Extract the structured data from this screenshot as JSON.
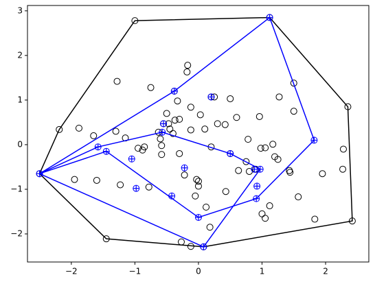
{
  "chart_data": {
    "type": "scatter",
    "xlim": [
      -2.69,
      2.68
    ],
    "ylim": [
      -2.63,
      3.12
    ],
    "xticks": [
      {
        "value": -2,
        "label": "−2"
      },
      {
        "value": -1,
        "label": "−1"
      },
      0,
      1,
      2
    ],
    "yticks": [
      {
        "value": -2,
        "label": "−2"
      },
      {
        "value": -1,
        "label": "−1"
      },
      0,
      1,
      2,
      3
    ],
    "series": [
      {
        "mode": "markers",
        "marker": "circle",
        "color": "#000000",
        "x": [
          -1.0,
          1.12,
          2.35,
          2.42,
          0.08,
          -1.45,
          -2.5,
          -2.19,
          -1.28,
          -0.75,
          -0.17,
          -0.18,
          -0.38,
          -0.33,
          0.2,
          0.25,
          0.5,
          1.5,
          1.27,
          1.5,
          -0.5,
          -0.12,
          0.03,
          0.6,
          0.96,
          0.42,
          0.3,
          -0.3,
          -0.37,
          -0.47,
          -0.55,
          -0.63,
          -0.45,
          -0.4,
          -0.12,
          0.1,
          -1.88,
          -1.65,
          -1.3,
          -1.15,
          -0.95,
          -0.85,
          -0.88,
          -0.6,
          -0.58,
          -0.3,
          0.2,
          0.5,
          0.78,
          0.98,
          1.05,
          1.17,
          1.25,
          1.2,
          0.63,
          0.75,
          0.8,
          0.9,
          1.43,
          1.44,
          1.95,
          2.28,
          2.27,
          1.57,
          1.83,
          1.12,
          1.0,
          1.05,
          -1.95,
          -1.6,
          -1.23,
          -0.78,
          -0.58,
          -0.22,
          -0.03,
          0.0,
          -0.05,
          0.43,
          0.12,
          0.18,
          -0.27,
          -0.12,
          0.0
        ],
        "y": [
          2.78,
          2.85,
          0.85,
          -1.71,
          -2.29,
          -2.11,
          -0.65,
          0.34,
          1.42,
          1.28,
          1.78,
          1.63,
          1.2,
          0.98,
          1.07,
          1.07,
          1.03,
          1.38,
          1.07,
          0.75,
          0.7,
          0.84,
          0.67,
          0.61,
          0.63,
          0.45,
          0.47,
          0.57,
          0.55,
          0.47,
          0.47,
          0.28,
          0.35,
          0.25,
          0.33,
          0.35,
          0.37,
          0.2,
          0.3,
          0.15,
          -0.08,
          -0.05,
          -0.12,
          0.13,
          -0.02,
          -0.2,
          -0.05,
          -0.2,
          0.12,
          -0.08,
          -0.07,
          0.01,
          -0.33,
          -0.27,
          -0.58,
          -0.38,
          -0.6,
          -0.55,
          -0.58,
          -0.62,
          -0.65,
          -0.1,
          -0.55,
          -1.17,
          -1.67,
          -1.37,
          -1.55,
          -1.65,
          -0.78,
          -0.8,
          -0.9,
          -0.95,
          -0.22,
          -0.68,
          -0.78,
          -0.93,
          -1.15,
          -1.05,
          -1.4,
          -1.85,
          -2.18,
          -2.28,
          -0.82
        ]
      },
      {
        "mode": "line",
        "color": "#000000",
        "x": [
          -1.0,
          1.12,
          2.35,
          2.42,
          0.08,
          -1.45,
          -2.5,
          -2.19,
          -1.0
        ],
        "y": [
          2.78,
          2.85,
          0.85,
          -1.71,
          -2.29,
          -2.11,
          -0.65,
          0.34,
          2.78
        ]
      },
      {
        "mode": "line",
        "color": "#0000ff",
        "x": [
          -2.5,
          -0.38,
          1.12,
          1.82,
          0.91,
          0.0,
          -1.45,
          -2.5
        ],
        "y": [
          -0.65,
          1.2,
          2.85,
          0.1,
          -1.21,
          -1.63,
          -0.15,
          -0.65
        ]
      },
      {
        "mode": "line",
        "color": "#0000ff",
        "x": [
          -2.5,
          -1.58,
          -0.57,
          0.5,
          0.97,
          0.08,
          -2.5
        ],
        "y": [
          -0.65,
          -0.05,
          0.28,
          -0.2,
          -0.55,
          -2.29,
          -0.65
        ]
      },
      {
        "mode": "markers",
        "marker": "plus",
        "color": "#0000ff",
        "x": [
          1.12,
          1.82,
          0.91,
          0.0,
          -1.45,
          -1.58,
          -0.57,
          0.5,
          0.97,
          0.88,
          0.92,
          0.08,
          -2.5,
          -0.38,
          0.2,
          -0.55,
          -1.05,
          -0.98,
          -0.42,
          -0.22
        ],
        "y": [
          2.85,
          0.1,
          -1.21,
          -1.63,
          -0.15,
          -0.05,
          0.28,
          -0.2,
          -0.55,
          -0.55,
          -0.93,
          -2.29,
          -0.65,
          1.2,
          1.07,
          0.47,
          -0.32,
          -0.98,
          -1.15,
          -0.52
        ]
      }
    ]
  }
}
